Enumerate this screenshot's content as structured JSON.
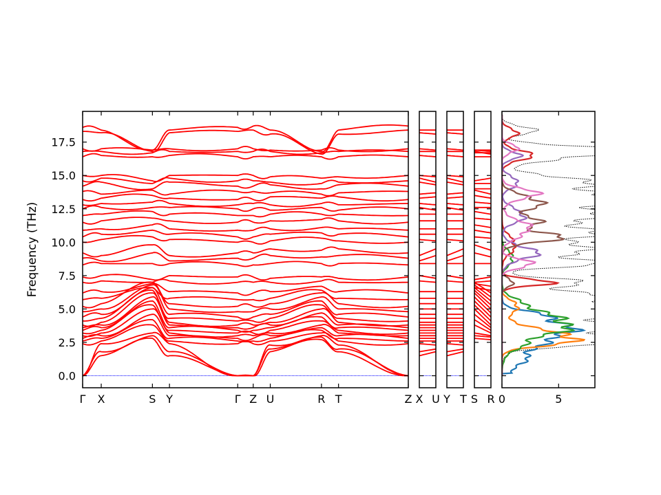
{
  "chart_data": {
    "type": "line",
    "ylabel": "Frequency (THz)",
    "ylim": [
      -0.9,
      19.8
    ],
    "y_ticks": [
      "0.0",
      "2.5",
      "5.0",
      "7.5",
      "10.0",
      "12.5",
      "15.0",
      "17.5"
    ],
    "y_tick_values": [
      0,
      2.5,
      5,
      7.5,
      10,
      12.5,
      15,
      17.5
    ],
    "band_color": "#ff0000",
    "zero_line_color": "#0000ff",
    "panels": [
      {
        "id": "main",
        "path": [
          "Γ",
          "X",
          "S",
          "Y",
          "Γ",
          "Z",
          "U",
          "R",
          "T",
          "Z"
        ],
        "labels": [
          "Γ",
          "X",
          "S",
          "Y",
          "Γ",
          "Z",
          "U",
          "R",
          "T",
          "Z"
        ],
        "label_values": [
          0,
          0.12,
          0.45,
          0.56,
          1.0,
          1.1,
          1.21,
          1.54,
          1.65,
          2.1
        ]
      },
      {
        "id": "xu",
        "labels": [
          "X",
          "U"
        ],
        "label_values": [
          0,
          1
        ]
      },
      {
        "id": "yt",
        "labels": [
          "Y",
          "T"
        ],
        "label_values": [
          0,
          1
        ]
      },
      {
        "id": "sr",
        "labels": [
          "S",
          "R"
        ],
        "label_values": [
          0,
          1
        ]
      }
    ],
    "band_anchors": [
      {
        "gamma": 0.0,
        "x": 1.5,
        "s": 2.8,
        "z": 0.0,
        "u": 1.8,
        "r": 2.7
      },
      {
        "gamma": 0.0,
        "x": 1.8,
        "s": 3.0,
        "z": 0.0,
        "u": 2.0,
        "r": 2.9
      },
      {
        "gamma": 0.0,
        "x": 2.4,
        "s": 3.2,
        "z": 0.0,
        "u": 2.3,
        "r": 3.0
      },
      {
        "gamma": 2.4,
        "x": 2.6,
        "s": 3.8,
        "z": 2.4,
        "u": 2.6,
        "r": 3.2
      },
      {
        "gamma": 2.6,
        "x": 2.8,
        "s": 4.2,
        "z": 2.6,
        "u": 2.8,
        "r": 3.4
      },
      {
        "gamma": 2.8,
        "x": 3.0,
        "s": 4.6,
        "z": 2.8,
        "u": 3.0,
        "r": 3.6
      },
      {
        "gamma": 3.0,
        "x": 3.2,
        "s": 5.0,
        "z": 3.0,
        "u": 3.2,
        "r": 3.8
      },
      {
        "gamma": 3.2,
        "x": 3.4,
        "s": 5.3,
        "z": 3.2,
        "u": 3.4,
        "r": 4.1
      },
      {
        "gamma": 3.4,
        "x": 3.6,
        "s": 5.6,
        "z": 3.4,
        "u": 3.6,
        "r": 4.4
      },
      {
        "gamma": 3.6,
        "x": 3.8,
        "s": 5.9,
        "z": 3.6,
        "u": 3.8,
        "r": 4.7
      },
      {
        "gamma": 3.8,
        "x": 4.0,
        "s": 6.2,
        "z": 3.8,
        "u": 4.0,
        "r": 5.0
      },
      {
        "gamma": 4.1,
        "x": 4.3,
        "s": 6.4,
        "z": 4.1,
        "u": 4.3,
        "r": 5.3
      },
      {
        "gamma": 4.4,
        "x": 4.6,
        "s": 6.6,
        "z": 4.4,
        "u": 4.6,
        "r": 5.6
      },
      {
        "gamma": 4.8,
        "x": 5.0,
        "s": 6.8,
        "z": 4.8,
        "u": 5.0,
        "r": 5.9
      },
      {
        "gamma": 5.2,
        "x": 5.4,
        "s": 7.0,
        "z": 5.2,
        "u": 5.4,
        "r": 6.2
      },
      {
        "gamma": 5.7,
        "x": 5.8,
        "s": 6.6,
        "z": 5.7,
        "u": 5.8,
        "r": 6.4
      },
      {
        "gamma": 6.2,
        "x": 6.3,
        "s": 6.9,
        "z": 6.2,
        "u": 6.3,
        "r": 6.7
      },
      {
        "gamma": 7.0,
        "x": 7.1,
        "s": 7.0,
        "z": 7.0,
        "u": 7.0,
        "r": 7.1
      },
      {
        "gamma": 7.4,
        "x": 7.5,
        "s": 7.2,
        "z": 7.4,
        "u": 7.3,
        "r": 7.4
      },
      {
        "gamma": 8.3,
        "x": 8.4,
        "s": 8.4,
        "z": 8.3,
        "u": 8.4,
        "r": 8.4
      },
      {
        "gamma": 8.8,
        "x": 8.6,
        "s": 9.2,
        "z": 8.8,
        "u": 9.0,
        "r": 8.9
      },
      {
        "gamma": 9.2,
        "x": 9.0,
        "s": 9.8,
        "z": 9.2,
        "u": 9.5,
        "r": 9.4
      },
      {
        "gamma": 10.0,
        "x": 10.2,
        "s": 10.4,
        "z": 10.0,
        "u": 10.1,
        "r": 10.3
      },
      {
        "gamma": 10.4,
        "x": 10.6,
        "s": 10.9,
        "z": 10.4,
        "u": 10.6,
        "r": 10.7
      },
      {
        "gamma": 10.9,
        "x": 11.0,
        "s": 11.3,
        "z": 10.9,
        "u": 11.0,
        "r": 11.1
      },
      {
        "gamma": 11.5,
        "x": 11.6,
        "s": 11.8,
        "z": 11.5,
        "u": 11.6,
        "r": 11.7
      },
      {
        "gamma": 12.0,
        "x": 12.1,
        "s": 12.3,
        "z": 12.0,
        "u": 12.1,
        "r": 12.1
      },
      {
        "gamma": 12.5,
        "x": 12.6,
        "s": 12.6,
        "z": 12.5,
        "u": 12.4,
        "r": 12.6
      },
      {
        "gamma": 12.8,
        "x": 12.9,
        "s": 13.0,
        "z": 12.9,
        "u": 12.8,
        "r": 12.9
      },
      {
        "gamma": 13.2,
        "x": 13.3,
        "s": 13.5,
        "z": 13.2,
        "u": 13.4,
        "r": 13.3
      },
      {
        "gamma": 13.8,
        "x": 13.6,
        "s": 13.9,
        "z": 13.8,
        "u": 13.7,
        "r": 13.6
      },
      {
        "gamma": 14.2,
        "x": 14.5,
        "s": 14.0,
        "z": 14.2,
        "u": 14.3,
        "r": 14.0
      },
      {
        "gamma": 14.6,
        "x": 14.8,
        "s": 14.4,
        "z": 14.6,
        "u": 14.5,
        "r": 14.4
      },
      {
        "gamma": 15.0,
        "x": 15.0,
        "s": 14.6,
        "z": 15.0,
        "u": 14.9,
        "r": 14.8
      },
      {
        "gamma": 16.4,
        "x": 16.5,
        "s": 16.4,
        "z": 16.4,
        "u": 16.4,
        "r": 16.4
      },
      {
        "gamma": 16.8,
        "x": 16.8,
        "s": 16.7,
        "z": 16.8,
        "u": 16.8,
        "r": 16.7
      },
      {
        "gamma": 17.0,
        "x": 17.0,
        "s": 16.9,
        "z": 17.0,
        "u": 16.9,
        "r": 16.9
      },
      {
        "gamma": 18.3,
        "x": 18.2,
        "s": 16.8,
        "z": 18.4,
        "u": 18.1,
        "r": 16.6
      },
      {
        "gamma": 18.6,
        "x": 18.4,
        "s": 16.9,
        "z": 18.7,
        "u": 18.4,
        "r": 16.8
      }
    ],
    "dos": {
      "x_ticks": [
        "0",
        "5"
      ],
      "x_tick_values": [
        0,
        5
      ],
      "xlim": [
        0,
        8.2
      ],
      "series": [
        {
          "color": "#1f77b4",
          "peaks": [
            [
              2.0,
              2.5,
              1.2
            ],
            [
              3.4,
              4.6,
              0.6
            ],
            [
              4.4,
              3.0,
              0.4
            ]
          ]
        },
        {
          "color": "#ff7f0e",
          "peaks": [
            [
              2.7,
              5.5,
              0.4
            ],
            [
              3.3,
              2.5,
              0.6
            ],
            [
              5.2,
              1.5,
              0.4
            ]
          ]
        },
        {
          "color": "#2ca02c",
          "peaks": [
            [
              3.0,
              2.8,
              0.8
            ],
            [
              3.9,
              4.2,
              0.5
            ],
            [
              5.0,
              2.5,
              0.6
            ],
            [
              8.8,
              1.0,
              0.5
            ]
          ]
        },
        {
          "color": "#d62728",
          "peaks": [
            [
              7.0,
              4.2,
              0.25
            ],
            [
              9.8,
              1.2,
              0.6
            ],
            [
              16.5,
              2.5,
              0.4
            ],
            [
              18.2,
              1.5,
              0.3
            ]
          ]
        },
        {
          "color": "#9467bd",
          "peaks": [
            [
              9.2,
              3.0,
              0.5
            ],
            [
              12.0,
              2.0,
              0.5
            ],
            [
              14.5,
              1.5,
              0.4
            ],
            [
              16.5,
              1.5,
              0.3
            ]
          ]
        },
        {
          "color": "#8c564b",
          "peaks": [
            [
              10.4,
              5.0,
              0.4
            ],
            [
              11.6,
              3.0,
              0.4
            ],
            [
              13.0,
              3.5,
              0.5
            ],
            [
              7.0,
              1.0,
              0.3
            ]
          ]
        },
        {
          "color": "#e377c2",
          "peaks": [
            [
              8.4,
              3.0,
              0.3
            ],
            [
              11.0,
              2.5,
              0.6
            ],
            [
              13.6,
              3.0,
              0.4
            ],
            [
              17.0,
              1.5,
              0.3
            ]
          ]
        }
      ],
      "total_color": "#000000",
      "total_peaks": [
        [
          2.6,
          7.5,
          0.35
        ],
        [
          3.5,
          7.0,
          0.8
        ],
        [
          4.8,
          6.0,
          0.8
        ],
        [
          5.8,
          6.5,
          0.6
        ],
        [
          7.0,
          6.0,
          0.3
        ],
        [
          8.4,
          7.5,
          0.3
        ],
        [
          9.3,
          7.0,
          0.4
        ],
        [
          10.5,
          7.8,
          0.5
        ],
        [
          11.8,
          7.5,
          0.5
        ],
        [
          12.8,
          7.0,
          0.4
        ],
        [
          13.7,
          8.0,
          0.5
        ],
        [
          14.7,
          5.5,
          0.4
        ],
        [
          16.5,
          7.0,
          0.4
        ],
        [
          17.0,
          7.0,
          0.3
        ],
        [
          18.4,
          3.0,
          0.3
        ]
      ]
    }
  }
}
